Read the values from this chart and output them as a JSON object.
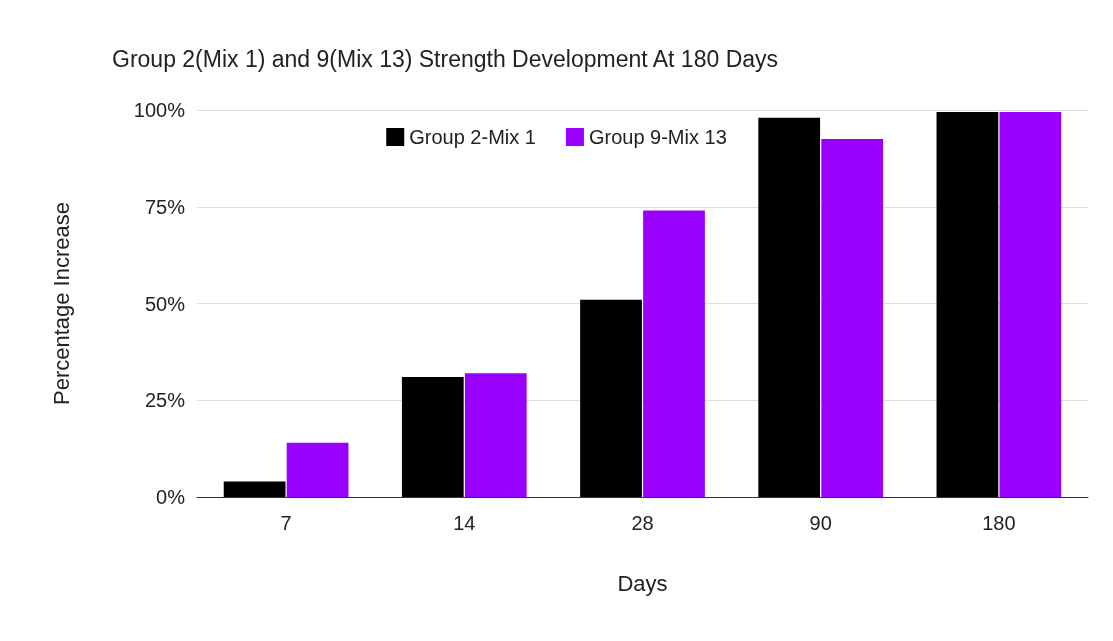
{
  "chart_data": {
    "type": "bar",
    "title": "Group 2(Mix 1) and 9(Mix 13) Strength Development At 180 Days",
    "xlabel": "Days",
    "ylabel": "Percentage Increase",
    "categories": [
      "7",
      "14",
      "28",
      "90",
      "180"
    ],
    "series": [
      {
        "name": "Group 2-Mix 1",
        "color": "#000000",
        "values": [
          4,
          31,
          51,
          98,
          99.5
        ]
      },
      {
        "name": "Group 9-Mix 13",
        "color": "#9900ff",
        "values": [
          14,
          32,
          74,
          92.5,
          99.5
        ]
      }
    ],
    "ylim": [
      0,
      100
    ],
    "yticks": [
      {
        "value": 0,
        "label": "0%"
      },
      {
        "value": 25,
        "label": "25%"
      },
      {
        "value": 50,
        "label": "50%"
      },
      {
        "value": 75,
        "label": "75%"
      },
      {
        "value": 100,
        "label": "100%"
      }
    ],
    "grid": "y",
    "legend": "top"
  }
}
